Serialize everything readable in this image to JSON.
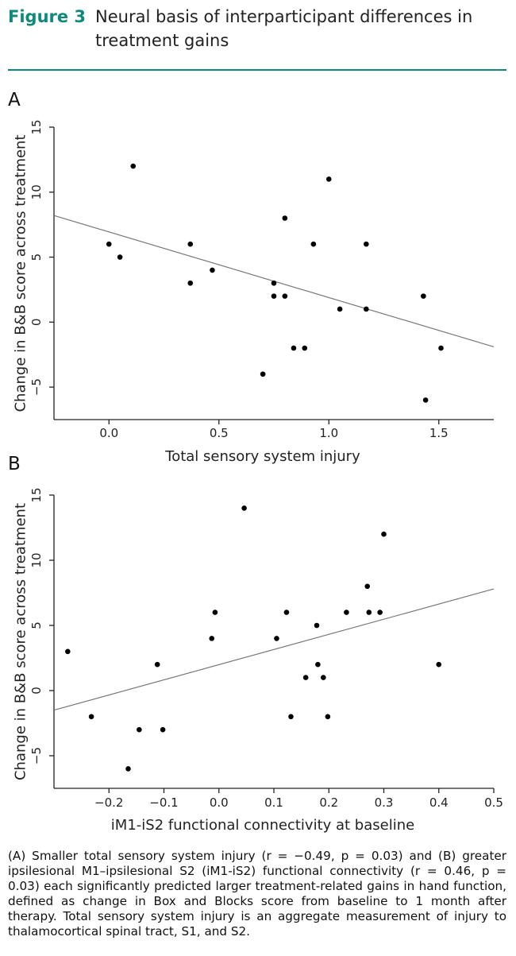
{
  "figure": {
    "label": "Figure 3",
    "title": "Neural basis of interparticipant differences in treatment gains"
  },
  "caption": "(A) Smaller total sensory system injury (r = −0.49, p = 0.03) and (B) greater ipsilesional M1–ipsilesional S2 (iM1-iS2) functional connectivity (r = 0.46, p = 0.03) each significantly predicted larger treatment-related gains in hand function, defined as change in Box and Blocks score from baseline to 1 month after therapy. Total sensory system injury is an aggregate measurement of injury to thalamocortical spinal tract, S1, and S2.",
  "chart_data": [
    {
      "panel": "A",
      "type": "scatter",
      "xlabel": "Total sensory system injury",
      "ylabel": "Change in B&B score across treatment",
      "xlim": [
        -0.25,
        1.75
      ],
      "ylim": [
        -7.5,
        15
      ],
      "xticks": [
        0.0,
        0.5,
        1.0,
        1.5
      ],
      "xtick_labels": [
        "0.0",
        "0.5",
        "1.0",
        "1.5"
      ],
      "yticks": [
        -5,
        0,
        5,
        10,
        15
      ],
      "ytick_labels": [
        "−5",
        "0",
        "5",
        "10",
        "15"
      ],
      "grid": false,
      "points": [
        {
          "x": 0.0,
          "y": 6
        },
        {
          "x": 0.05,
          "y": 5
        },
        {
          "x": 0.11,
          "y": 12
        },
        {
          "x": 0.37,
          "y": 6
        },
        {
          "x": 0.37,
          "y": 3
        },
        {
          "x": 0.47,
          "y": 4
        },
        {
          "x": 0.7,
          "y": -4
        },
        {
          "x": 0.75,
          "y": 3
        },
        {
          "x": 0.75,
          "y": 2
        },
        {
          "x": 0.8,
          "y": 8
        },
        {
          "x": 0.8,
          "y": 2
        },
        {
          "x": 0.84,
          "y": -2
        },
        {
          "x": 0.89,
          "y": -2
        },
        {
          "x": 0.93,
          "y": 6
        },
        {
          "x": 1.0,
          "y": 11
        },
        {
          "x": 1.05,
          "y": 1
        },
        {
          "x": 1.17,
          "y": 6
        },
        {
          "x": 1.17,
          "y": 1
        },
        {
          "x": 1.43,
          "y": 2
        },
        {
          "x": 1.44,
          "y": -6
        },
        {
          "x": 1.51,
          "y": -2
        }
      ],
      "fit_line": {
        "x": [
          -0.25,
          1.75
        ],
        "y": [
          8.2,
          -1.9
        ]
      }
    },
    {
      "panel": "B",
      "type": "scatter",
      "xlabel": "iM1-iS2 functional connectivity at baseline",
      "ylabel": "Change in B&B score across treatment",
      "xlim": [
        -0.3,
        0.5
      ],
      "ylim": [
        -7.5,
        15
      ],
      "xticks": [
        -0.2,
        -0.1,
        0.0,
        0.1,
        0.2,
        0.3,
        0.4,
        0.5
      ],
      "xtick_labels": [
        "−0.2",
        "−0.1",
        "0.0",
        "0.1",
        "0.2",
        "0.3",
        "0.4",
        "0.5"
      ],
      "yticks": [
        -5,
        0,
        5,
        10,
        15
      ],
      "ytick_labels": [
        "−5",
        "0",
        "5",
        "10",
        "15"
      ],
      "grid": false,
      "points": [
        {
          "x": -0.275,
          "y": 3
        },
        {
          "x": -0.232,
          "y": -2
        },
        {
          "x": -0.165,
          "y": -6
        },
        {
          "x": -0.145,
          "y": -3
        },
        {
          "x": -0.112,
          "y": 2
        },
        {
          "x": -0.102,
          "y": -3
        },
        {
          "x": -0.013,
          "y": 4
        },
        {
          "x": -0.007,
          "y": 6
        },
        {
          "x": 0.046,
          "y": 14
        },
        {
          "x": 0.105,
          "y": 4
        },
        {
          "x": 0.123,
          "y": 6
        },
        {
          "x": 0.131,
          "y": -2
        },
        {
          "x": 0.158,
          "y": 1
        },
        {
          "x": 0.178,
          "y": 5
        },
        {
          "x": 0.18,
          "y": 2
        },
        {
          "x": 0.19,
          "y": 1
        },
        {
          "x": 0.198,
          "y": -2
        },
        {
          "x": 0.232,
          "y": 6
        },
        {
          "x": 0.27,
          "y": 8
        },
        {
          "x": 0.273,
          "y": 6
        },
        {
          "x": 0.293,
          "y": 6
        },
        {
          "x": 0.3,
          "y": 12
        },
        {
          "x": 0.4,
          "y": 2
        }
      ],
      "fit_line": {
        "x": [
          -0.3,
          0.5
        ],
        "y": [
          -1.5,
          7.8
        ]
      }
    }
  ]
}
